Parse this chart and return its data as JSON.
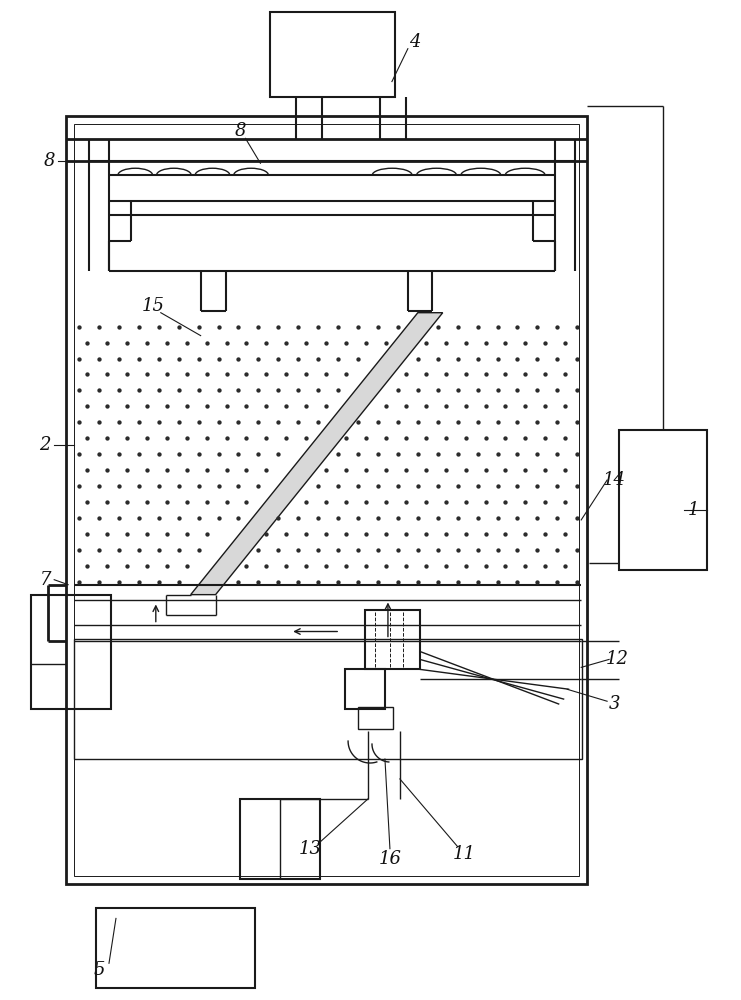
{
  "bg_color": "#ffffff",
  "line_color": "#1a1a1a",
  "dot_color": "#2a2a2a",
  "fig_width": 7.41,
  "fig_height": 10.0
}
